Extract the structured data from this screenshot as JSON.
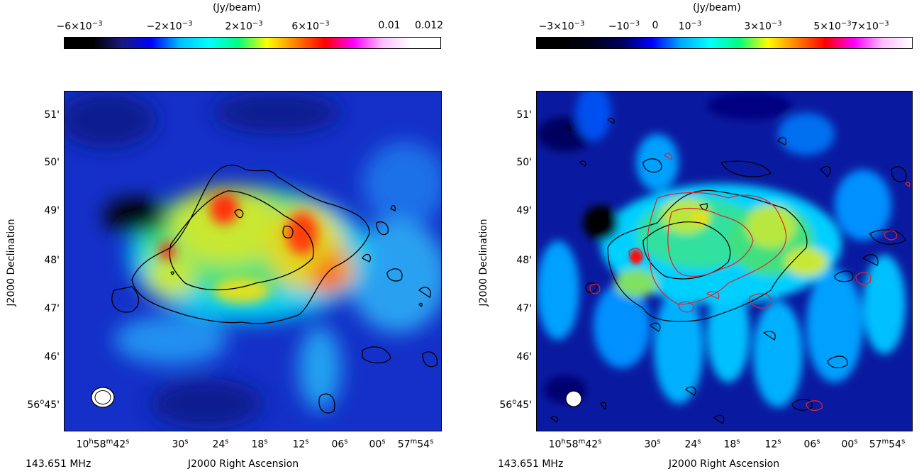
{
  "panels": [
    {
      "unit": "(Jy/beam)",
      "colorbar": {
        "colors": [
          "#000000",
          "#000000",
          "#1a1a80",
          "#0000ff",
          "#00bfff",
          "#00ffff",
          "#00ff80",
          "#ffff00",
          "#ff8000",
          "#ff0000",
          "#ff00ff",
          "#ffc0ff",
          "#ffffff",
          "#ffffff"
        ],
        "ticks": [
          {
            "base": "−6×10",
            "exp": "−3"
          },
          {
            "base": "−2×10",
            "exp": "−3"
          },
          {
            "base": "2×10",
            "exp": "−3"
          },
          {
            "base": "6×10",
            "exp": "−3"
          },
          {
            "base": "0.01",
            "exp": ""
          },
          {
            "base": "0.012",
            "exp": ""
          }
        ]
      },
      "yticks": [
        {
          "deg": "",
          "text": "51'"
        },
        {
          "deg": "",
          "text": "50'"
        },
        {
          "deg": "",
          "text": "49'"
        },
        {
          "deg": "",
          "text": "48'"
        },
        {
          "deg": "",
          "text": "47'"
        },
        {
          "deg": "",
          "text": "46'"
        },
        {
          "deg": "56",
          "text": "45'"
        }
      ],
      "xticks": [
        {
          "h": "10",
          "m": "58",
          "s": "42"
        },
        {
          "h": "",
          "m": "",
          "s": "30"
        },
        {
          "h": "",
          "m": "",
          "s": "24"
        },
        {
          "h": "",
          "m": "",
          "s": "18"
        },
        {
          "h": "",
          "m": "",
          "s": "12"
        },
        {
          "h": "",
          "m": "",
          "s": "06"
        },
        {
          "h": "",
          "m": "",
          "s": "00"
        },
        {
          "h": "",
          "m": "57",
          "s": "54"
        }
      ],
      "ylabel": "J2000 Declination",
      "xlabel": "J2000 Right Ascension",
      "freq": "143.651 MHz"
    },
    {
      "unit": "(Jy/beam)",
      "colorbar": {
        "colors": [
          "#000000",
          "#000000",
          "#000020",
          "#000060",
          "#0000ff",
          "#00aaff",
          "#00ffff",
          "#00ff80",
          "#ffff00",
          "#ff8000",
          "#ff0000",
          "#ff00ff",
          "#ffc0ff",
          "#ffffff"
        ],
        "ticks": [
          {
            "base": "−3×10",
            "exp": "−3"
          },
          {
            "base": "−10",
            "exp": "−3"
          },
          {
            "base": "0",
            "exp": ""
          },
          {
            "base": "10",
            "exp": "−3"
          },
          {
            "base": "3×10",
            "exp": "−3"
          },
          {
            "base": "5×10",
            "exp": "−3"
          },
          {
            "base": "7×10",
            "exp": "−3"
          }
        ]
      },
      "yticks": [
        {
          "deg": "",
          "text": "51'"
        },
        {
          "deg": "",
          "text": "50'"
        },
        {
          "deg": "",
          "text": "49'"
        },
        {
          "deg": "",
          "text": "48'"
        },
        {
          "deg": "",
          "text": "47'"
        },
        {
          "deg": "",
          "text": "46'"
        },
        {
          "deg": "56",
          "text": "45'"
        }
      ],
      "xticks": [
        {
          "h": "10",
          "m": "58",
          "s": "42"
        },
        {
          "h": "",
          "m": "",
          "s": "30"
        },
        {
          "h": "",
          "m": "",
          "s": "24"
        },
        {
          "h": "",
          "m": "",
          "s": "18"
        },
        {
          "h": "",
          "m": "",
          "s": "12"
        },
        {
          "h": "",
          "m": "",
          "s": "06"
        },
        {
          "h": "",
          "m": "",
          "s": "00"
        },
        {
          "h": "",
          "m": "57",
          "s": "54"
        }
      ],
      "ylabel": "J2000 Declination",
      "xlabel": "J2000 Right Ascension",
      "freq": "143.651 MHz"
    }
  ]
}
